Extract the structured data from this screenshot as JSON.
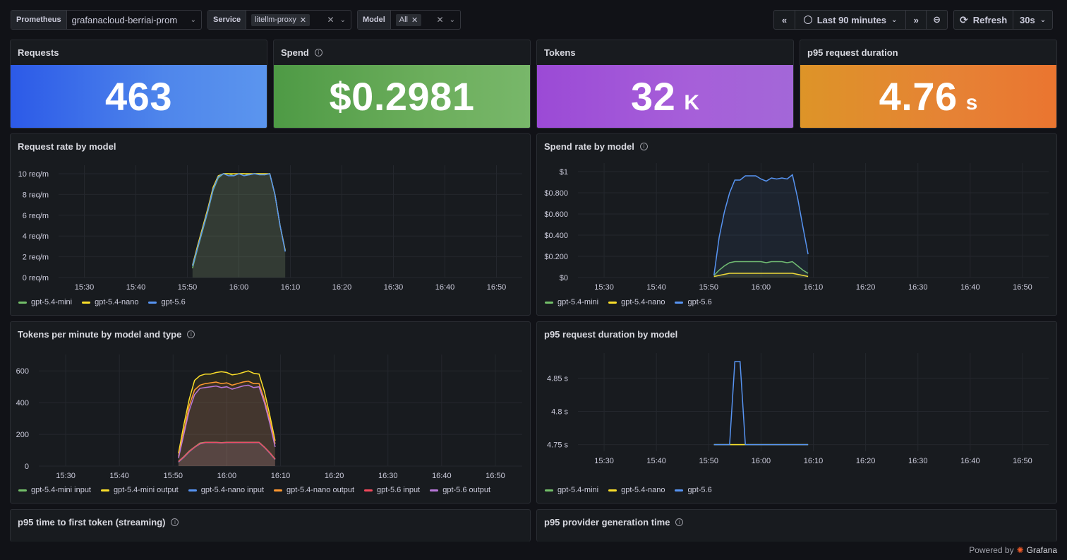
{
  "toolbar": {
    "prometheus": {
      "label": "Prometheus",
      "value": "grafanacloud-berriai-prom"
    },
    "service": {
      "label": "Service",
      "chip": "litellm-proxy"
    },
    "model": {
      "label": "Model",
      "chip": "All"
    },
    "time_range": "Last 90 minutes",
    "refresh": "Refresh",
    "refresh_interval": "30s"
  },
  "stats": {
    "requests": {
      "title": "Requests",
      "value": "463",
      "unit": "",
      "color": "#3f74ea"
    },
    "spend": {
      "title": "Spend",
      "value": "$0.2981",
      "unit": "",
      "color": "#63a555"
    },
    "tokens": {
      "title": "Tokens",
      "value": "32",
      "unit": "K",
      "color": "#a257d8"
    },
    "p95": {
      "title": "p95 request duration",
      "value": "4.76",
      "unit": "s",
      "color": "#e6852f"
    }
  },
  "panels": {
    "request_rate": {
      "title": "Request rate by model"
    },
    "spend_rate": {
      "title": "Spend rate by model"
    },
    "tokens_pm": {
      "title": "Tokens per minute by model and type"
    },
    "p95_duration": {
      "title": "p95 request duration by model"
    },
    "ttft": {
      "title": "p95 time to first token (streaming)"
    },
    "provider_gen": {
      "title": "p95 provider generation time"
    }
  },
  "colors": {
    "gpt-5.4-mini": "#73bf69",
    "gpt-5.4-nano": "#fade2a",
    "gpt-5.6": "#5794f2",
    "gpt-5.4-mini input": "#73bf69",
    "gpt-5.4-mini output": "#fade2a",
    "gpt-5.4-nano input": "#5794f2",
    "gpt-5.4-nano output": "#ff9830",
    "gpt-5.6 input": "#f2495c",
    "gpt-5.6 output": "#b877d9"
  },
  "chart_data": [
    {
      "type": "area",
      "id": "request_rate",
      "title": "Request rate by model",
      "x_ticks": [
        "15:30",
        "15:40",
        "15:50",
        "16:00",
        "16:10",
        "16:20",
        "16:30",
        "16:40",
        "16:50"
      ],
      "x": [
        "15:51",
        "15:52",
        "15:53",
        "15:54",
        "15:55",
        "15:56",
        "15:57",
        "15:58",
        "15:59",
        "16:00",
        "16:01",
        "16:02",
        "16:03",
        "16:04",
        "16:05",
        "16:06",
        "16:07",
        "16:08",
        "16:09"
      ],
      "ylim": [
        0,
        10
      ],
      "y_ticks": [
        "0 req/m",
        "2 req/m",
        "4 req/m",
        "6 req/m",
        "8 req/m",
        "10 req/m"
      ],
      "series": [
        {
          "name": "gpt-5.4-mini",
          "values": [
            0.9,
            2.8,
            4.6,
            6.4,
            8.4,
            9.6,
            10,
            10,
            9.8,
            10,
            10,
            9.9,
            10,
            10,
            9.9,
            10,
            8,
            5,
            2.6
          ]
        },
        {
          "name": "gpt-5.4-nano",
          "values": [
            1.2,
            3.1,
            4.9,
            6.7,
            8.7,
            9.8,
            10,
            10,
            10,
            10,
            10,
            10,
            10,
            10,
            10,
            10,
            8,
            5,
            2.6
          ]
        },
        {
          "name": "gpt-5.6",
          "values": [
            1.1,
            2.9,
            4.7,
            6.5,
            8.5,
            9.7,
            10,
            9.8,
            9.8,
            10,
            9.8,
            9.9,
            10,
            9.9,
            9.9,
            10,
            8,
            5,
            2.5
          ]
        }
      ]
    },
    {
      "type": "area",
      "id": "spend_rate",
      "title": "Spend rate by model",
      "x_ticks": [
        "15:30",
        "15:40",
        "15:50",
        "16:00",
        "16:10",
        "16:20",
        "16:30",
        "16:40",
        "16:50"
      ],
      "x": [
        "15:51",
        "15:52",
        "15:53",
        "15:54",
        "15:55",
        "15:56",
        "15:57",
        "15:58",
        "15:59",
        "16:00",
        "16:01",
        "16:02",
        "16:03",
        "16:04",
        "16:05",
        "16:06",
        "16:07",
        "16:08",
        "16:09"
      ],
      "ylim": [
        0,
        1
      ],
      "y_ticks": [
        "$0",
        "$0.200",
        "$0.400",
        "$0.600",
        "$0.800",
        "$1"
      ],
      "series": [
        {
          "name": "gpt-5.4-mini",
          "values": [
            0.02,
            0.07,
            0.11,
            0.14,
            0.15,
            0.15,
            0.15,
            0.15,
            0.15,
            0.15,
            0.14,
            0.15,
            0.15,
            0.15,
            0.14,
            0.15,
            0.11,
            0.07,
            0.04
          ]
        },
        {
          "name": "gpt-5.4-nano",
          "values": [
            0.01,
            0.02,
            0.03,
            0.04,
            0.04,
            0.04,
            0.04,
            0.04,
            0.04,
            0.04,
            0.04,
            0.04,
            0.04,
            0.04,
            0.04,
            0.04,
            0.03,
            0.02,
            0.01
          ]
        },
        {
          "name": "gpt-5.6",
          "values": [
            0.02,
            0.38,
            0.62,
            0.8,
            0.92,
            0.92,
            0.96,
            0.96,
            0.96,
            0.93,
            0.91,
            0.94,
            0.93,
            0.94,
            0.93,
            0.97,
            0.75,
            0.48,
            0.22
          ]
        }
      ]
    },
    {
      "type": "area",
      "id": "tokens_pm",
      "title": "Tokens per minute by model and type",
      "x_ticks": [
        "15:30",
        "15:40",
        "15:50",
        "16:00",
        "16:10",
        "16:20",
        "16:30",
        "16:40",
        "16:50"
      ],
      "x": [
        "15:51",
        "15:52",
        "15:53",
        "15:54",
        "15:55",
        "15:56",
        "15:57",
        "15:58",
        "15:59",
        "16:00",
        "16:01",
        "16:02",
        "16:03",
        "16:04",
        "16:05",
        "16:06",
        "16:07",
        "16:08",
        "16:09"
      ],
      "ylim": [
        0,
        650
      ],
      "y_ticks": [
        "0",
        "200",
        "400",
        "600"
      ],
      "series": [
        {
          "name": "gpt-5.4-mini input",
          "values": [
            30,
            60,
            95,
            120,
            145,
            150,
            150,
            150,
            148,
            150,
            150,
            150,
            150,
            150,
            150,
            150,
            120,
            85,
            45
          ]
        },
        {
          "name": "gpt-5.4-mini output",
          "values": [
            80,
            260,
            420,
            540,
            570,
            580,
            580,
            590,
            595,
            590,
            575,
            580,
            590,
            600,
            585,
            580,
            470,
            320,
            160
          ]
        },
        {
          "name": "gpt-5.4-nano input",
          "values": [
            25,
            55,
            90,
            118,
            140,
            148,
            148,
            148,
            146,
            148,
            148,
            148,
            148,
            148,
            148,
            148,
            118,
            82,
            42
          ]
        },
        {
          "name": "gpt-5.4-nano output",
          "values": [
            60,
            220,
            380,
            480,
            510,
            520,
            525,
            530,
            520,
            525,
            510,
            520,
            530,
            535,
            520,
            520,
            420,
            290,
            140
          ]
        },
        {
          "name": "gpt-5.6 input",
          "values": [
            28,
            58,
            92,
            119,
            142,
            149,
            149,
            149,
            147,
            149,
            149,
            149,
            149,
            149,
            149,
            149,
            119,
            84,
            43
          ]
        },
        {
          "name": "gpt-5.6 output",
          "values": [
            50,
            200,
            350,
            450,
            490,
            495,
            500,
            505,
            495,
            500,
            485,
            495,
            505,
            510,
            495,
            500,
            400,
            270,
            120
          ]
        }
      ]
    },
    {
      "type": "line",
      "id": "p95_duration",
      "title": "p95 request duration by model",
      "x_ticks": [
        "15:30",
        "15:40",
        "15:50",
        "16:00",
        "16:10",
        "16:20",
        "16:30",
        "16:40",
        "16:50"
      ],
      "x": [
        "15:51",
        "15:52",
        "15:53",
        "15:54",
        "15:55",
        "15:56",
        "15:57",
        "15:58",
        "15:59",
        "16:00",
        "16:01",
        "16:02",
        "16:03",
        "16:04",
        "16:05",
        "16:06",
        "16:07",
        "16:08",
        "16:09"
      ],
      "ylim": [
        4.74,
        4.875
      ],
      "y_ticks": [
        "4.75 s",
        "4.8 s",
        "4.85 s"
      ],
      "series": [
        {
          "name": "gpt-5.4-mini",
          "values": [
            4.75,
            4.75,
            4.75,
            4.75,
            4.75,
            4.75,
            4.75,
            4.75,
            4.75,
            4.75,
            4.75,
            4.75,
            4.75,
            4.75,
            4.75,
            4.75,
            4.75,
            4.75,
            4.75
          ]
        },
        {
          "name": "gpt-5.4-nano",
          "values": [
            4.75,
            4.75,
            4.75,
            4.75,
            4.75,
            4.75,
            4.75,
            4.75,
            4.75,
            4.75,
            4.75,
            4.75,
            4.75,
            4.75,
            4.75,
            4.75,
            4.75,
            4.75,
            4.75
          ]
        },
        {
          "name": "gpt-5.6",
          "values": [
            4.75,
            4.75,
            4.75,
            4.75,
            4.875,
            4.875,
            4.75,
            4.75,
            4.75,
            4.75,
            4.75,
            4.75,
            4.75,
            4.75,
            4.75,
            4.75,
            4.75,
            4.75,
            4.75
          ]
        }
      ]
    }
  ],
  "footer": {
    "powered_by": "Powered by",
    "brand": "Grafana"
  }
}
